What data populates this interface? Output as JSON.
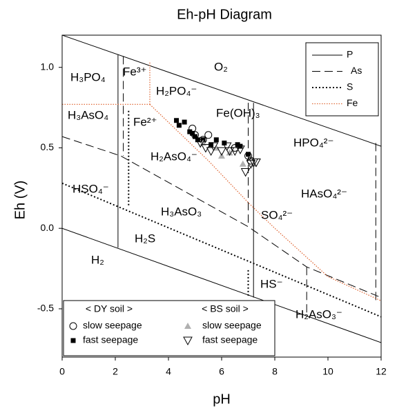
{
  "chart_data": {
    "type": "line",
    "title": "Eh-pH Diagram",
    "x_label": "pH",
    "y_label": "Eh (V)",
    "xlim": [
      0,
      12
    ],
    "ylim": [
      -0.8,
      1.2
    ],
    "xticks": [
      0,
      2,
      4,
      6,
      8,
      10,
      12
    ],
    "yticks": [
      -0.5,
      {
        "value": 0,
        "label": "0.0"
      },
      0.5,
      {
        "value": 1,
        "label": "1.0"
      }
    ],
    "grid": false,
    "legend": "upper right",
    "series": [
      {
        "name": "P",
        "color": "#000000",
        "style": "solid",
        "x": [
          0,
          12,
          null,
          0,
          12,
          null,
          2.1,
          2.1,
          null,
          7.2,
          7.2
        ],
        "values": [
          1.2,
          0.51,
          null,
          0,
          -0.71,
          null,
          1.08,
          -0.12,
          null,
          0.78,
          -0.43
        ]
      },
      {
        "name": "As",
        "color": "#000000",
        "style": "dashed",
        "x": [
          0,
          2.2,
          7.0,
          9.2,
          12,
          null,
          2.3,
          2.3,
          null,
          7.0,
          7.0,
          null,
          9.2,
          9.2,
          null,
          11.8,
          11.8
        ],
        "values": [
          0.57,
          0.45,
          0.01,
          -0.24,
          -0.43,
          null,
          1.07,
          0.45,
          null,
          0.78,
          0.01,
          null,
          -0.24,
          -0.55,
          null,
          0.53,
          -0.45
        ]
      },
      {
        "name": "S",
        "color": "#000000",
        "style": "dotted",
        "x": [
          0,
          12,
          null,
          2.5,
          2.5,
          null,
          7.0,
          7.0
        ],
        "values": [
          0.28,
          -0.55,
          null,
          0.73,
          0.13,
          null,
          -0.26,
          -0.43
        ]
      },
      {
        "name": "Fe",
        "color": "#e06a38",
        "style": "fine-dotted",
        "x": [
          0,
          3.3,
          null,
          3.3,
          3.3,
          null,
          3.3,
          5.5,
          7.0,
          8.0,
          10.0,
          12.0
        ],
        "values": [
          0.77,
          0.77,
          null,
          1.03,
          0.77,
          null,
          0.77,
          0.42,
          0.16,
          0.0,
          -0.3,
          -0.45
        ]
      }
    ],
    "scatter_groups": [
      {
        "title": "< DY soil >",
        "series": [
          {
            "name": "slow seepage",
            "marker": "circle",
            "color": "#000000",
            "x": [
              4.9,
              5.0,
              5.5,
              5.3,
              6.5,
              7.0,
              7.1
            ],
            "values": [
              0.62,
              0.58,
              0.58,
              0.55,
              0.5,
              0.45,
              0.42
            ]
          },
          {
            "name": "fast seepage",
            "marker": "square",
            "color": "#000000",
            "x": [
              4.3,
              4.4,
              4.6,
              4.8,
              4.9,
              5.0,
              5.1,
              5.3,
              5.6,
              5.8,
              6.1,
              6.6,
              6.7,
              7.0
            ],
            "values": [
              0.67,
              0.64,
              0.66,
              0.6,
              0.59,
              0.57,
              0.55,
              0.55,
              0.52,
              0.55,
              0.53,
              0.52,
              0.51,
              0.46
            ]
          }
        ]
      },
      {
        "title": "< BS soil >",
        "series": [
          {
            "name": "slow seepage",
            "marker": "triangle-up",
            "color": "#b0b0b0",
            "x": [
              5.3,
              5.8,
              6.0,
              6.3,
              6.8,
              7.2
            ],
            "values": [
              0.53,
              0.5,
              0.45,
              0.47,
              0.4,
              0.4
            ]
          },
          {
            "name": "fast seepage",
            "marker": "triangle-down",
            "color": "#000000",
            "x": [
              5.2,
              5.4,
              5.6,
              5.7,
              6.0,
              6.2,
              6.3,
              6.5,
              6.7,
              6.9,
              7.1,
              7.2,
              7.3
            ],
            "values": [
              0.53,
              0.5,
              0.48,
              0.51,
              0.48,
              0.51,
              0.48,
              0.48,
              0.49,
              0.35,
              0.4,
              0.41,
              0.41
            ]
          }
        ]
      }
    ],
    "annotations": [
      "H₃PO₄",
      "Fe³⁺",
      "O₂",
      "H₂PO₄⁻",
      "H₃AsO₄",
      "Fe²⁺",
      "Fe(OH)₃",
      "HPO₄²⁻",
      "H₂AsO₄⁻",
      "HSO₄⁻",
      "HAsO₄²⁻",
      "H₃AsO₃",
      "SO₄²⁻",
      "H₂S",
      "H₂",
      "HS⁻",
      "H₂AsO₃⁻"
    ]
  }
}
